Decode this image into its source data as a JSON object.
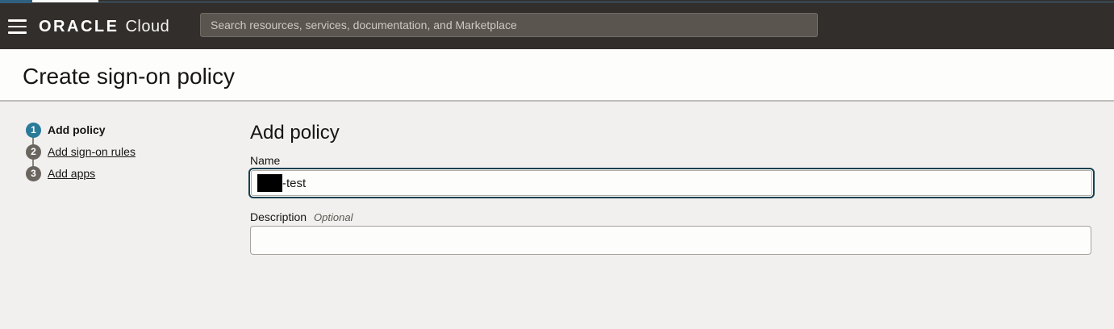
{
  "header": {
    "logo_oracle": "ORACLE",
    "logo_cloud": "Cloud",
    "search_placeholder": "Search resources, services, documentation, and Marketplace"
  },
  "page": {
    "title": "Create sign-on policy"
  },
  "stepper": {
    "steps": [
      {
        "number": "1",
        "label": "Add policy",
        "state": "current"
      },
      {
        "number": "2",
        "label": "Add sign-on rules",
        "state": "upcoming"
      },
      {
        "number": "3",
        "label": "Add apps",
        "state": "upcoming"
      }
    ]
  },
  "form": {
    "heading": "Add policy",
    "name_label": "Name",
    "name_value_visible": "-test",
    "name_value_redacted_prefix": true,
    "description_label": "Description",
    "optional_label": "Optional",
    "description_value": ""
  },
  "colors": {
    "header_bg": "#322e2b",
    "search_bg": "#5a554f",
    "body_bg": "#f1f0ee",
    "title_band_bg": "#fdfdfc",
    "step_active": "#2a7a99",
    "step_inactive": "#6b6560",
    "focus_ring": "#17414f",
    "text_primary": "#161513"
  }
}
